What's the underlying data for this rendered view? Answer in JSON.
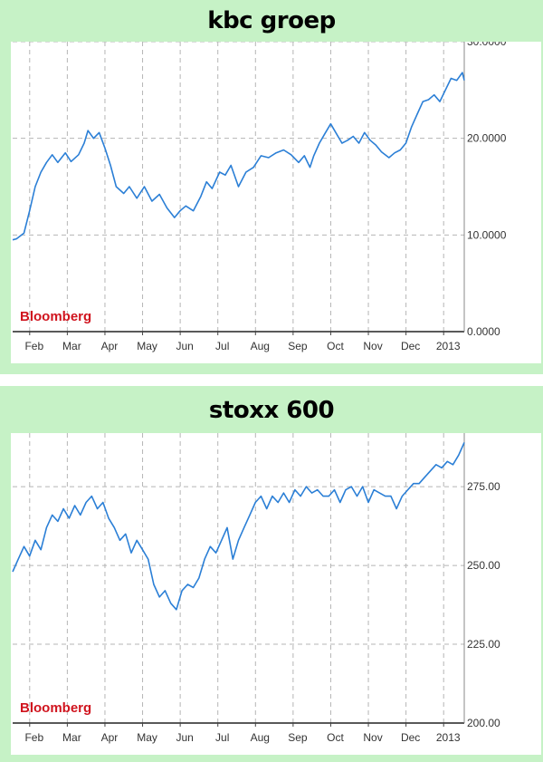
{
  "chart_data": [
    {
      "type": "line",
      "title": "kbc groep",
      "source": "Bloomberg",
      "xticks": [
        "Feb",
        "Mar",
        "Apr",
        "May",
        "Jun",
        "Jul",
        "Aug",
        "Sep",
        "Oct",
        "Nov",
        "Dec",
        "2013"
      ],
      "yticks": [
        "0.0000",
        "10.0000",
        "20.0000",
        "30.0000"
      ],
      "ylim": [
        0,
        30
      ],
      "xlim": [
        0,
        12
      ],
      "grid": true,
      "line_color": "#2b7fd6",
      "series": [
        {
          "x": [
            0,
            0.1,
            0.3,
            0.45,
            0.6,
            0.75,
            0.9,
            1.05,
            1.2,
            1.4,
            1.55,
            1.75,
            1.9,
            2.0,
            2.15,
            2.3,
            2.45,
            2.6,
            2.75,
            2.95,
            3.1,
            3.3,
            3.5,
            3.7,
            3.9,
            4.1,
            4.3,
            4.45,
            4.6,
            4.8,
            5.0,
            5.15,
            5.3,
            5.5,
            5.65,
            5.8,
            6.0,
            6.2,
            6.4,
            6.6,
            6.8,
            7.0,
            7.2,
            7.4,
            7.6,
            7.75,
            7.9,
            8.0,
            8.15,
            8.3,
            8.45,
            8.6,
            8.75,
            8.9,
            9.05,
            9.2,
            9.35,
            9.5,
            9.65,
            9.8,
            10.0,
            10.15,
            10.3,
            10.45,
            10.6,
            10.75,
            10.9,
            11.05,
            11.2,
            11.35,
            11.5,
            11.65,
            11.8,
            11.95,
            12.0
          ],
          "y": [
            9.5,
            9.6,
            10.2,
            12.5,
            15.0,
            16.5,
            17.5,
            18.3,
            17.5,
            18.5,
            17.6,
            18.3,
            19.5,
            20.8,
            20.0,
            20.6,
            19.0,
            17.2,
            15.0,
            14.3,
            15.0,
            13.8,
            15.0,
            13.5,
            14.2,
            12.8,
            11.8,
            12.5,
            13.0,
            12.5,
            14.0,
            15.5,
            14.8,
            16.5,
            16.2,
            17.2,
            15.0,
            16.5,
            17.0,
            18.2,
            18.0,
            18.5,
            18.8,
            18.3,
            17.5,
            18.2,
            17.0,
            18.2,
            19.5,
            20.5,
            21.5,
            20.5,
            19.5,
            19.8,
            20.2,
            19.5,
            20.6,
            19.8,
            19.3,
            18.6,
            18.0,
            18.5,
            18.8,
            19.5,
            21.2,
            22.5,
            23.8,
            24.0,
            24.5,
            23.8,
            25.0,
            26.2,
            26.0,
            26.8,
            26.0
          ]
        }
      ]
    },
    {
      "type": "line",
      "title": "stoxx 600",
      "source": "Bloomberg",
      "xticks": [
        "Feb",
        "Mar",
        "Apr",
        "May",
        "Jun",
        "Jul",
        "Aug",
        "Sep",
        "Oct",
        "Nov",
        "Dec",
        "2013"
      ],
      "yticks": [
        "200.00",
        "225.00",
        "250.00",
        "275.00"
      ],
      "ylim": [
        200,
        292
      ],
      "xlim": [
        0,
        12
      ],
      "grid": true,
      "line_color": "#2b7fd6",
      "series": [
        {
          "x": [
            0,
            0.15,
            0.3,
            0.45,
            0.6,
            0.75,
            0.9,
            1.05,
            1.2,
            1.35,
            1.5,
            1.65,
            1.8,
            1.95,
            2.1,
            2.25,
            2.4,
            2.55,
            2.7,
            2.85,
            3.0,
            3.15,
            3.3,
            3.45,
            3.6,
            3.75,
            3.9,
            4.05,
            4.2,
            4.35,
            4.5,
            4.65,
            4.8,
            4.95,
            5.1,
            5.25,
            5.4,
            5.55,
            5.7,
            5.85,
            6.0,
            6.15,
            6.3,
            6.45,
            6.6,
            6.75,
            6.9,
            7.05,
            7.2,
            7.35,
            7.5,
            7.65,
            7.8,
            7.95,
            8.1,
            8.25,
            8.4,
            8.55,
            8.7,
            8.85,
            9.0,
            9.15,
            9.3,
            9.45,
            9.6,
            9.75,
            9.9,
            10.05,
            10.2,
            10.35,
            10.5,
            10.65,
            10.8,
            10.95,
            11.1,
            11.25,
            11.4,
            11.55,
            11.7,
            11.85,
            12.0
          ],
          "y": [
            248,
            252,
            256,
            253,
            258,
            255,
            262,
            266,
            264,
            268,
            265,
            269,
            266,
            270,
            272,
            268,
            270,
            265,
            262,
            258,
            260,
            254,
            258,
            255,
            252,
            244,
            240,
            242,
            238,
            236,
            242,
            244,
            243,
            246,
            252,
            256,
            254,
            258,
            262,
            252,
            258,
            262,
            266,
            270,
            272,
            268,
            272,
            270,
            273,
            270,
            274,
            272,
            275,
            273,
            274,
            272,
            272,
            274,
            270,
            274,
            275,
            272,
            275,
            270,
            274,
            273,
            272,
            272,
            268,
            272,
            274,
            276,
            276,
            278,
            280,
            282,
            281,
            283,
            282,
            285,
            289
          ]
        }
      ]
    }
  ]
}
